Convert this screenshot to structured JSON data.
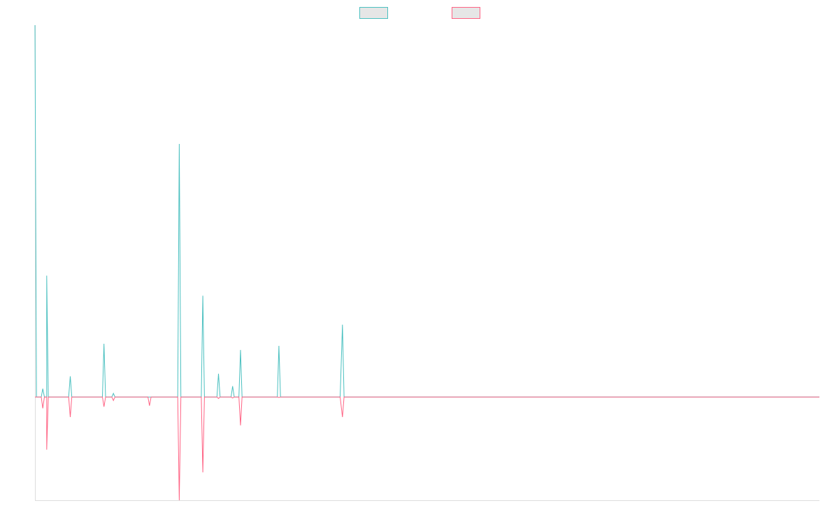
{
  "chart_data": {
    "type": "line",
    "title": "",
    "xlabel": "",
    "ylabel": "",
    "grid": false,
    "legend_position": "top-center",
    "x_range": [
      0,
      100
    ],
    "y_range": [
      -20,
      72
    ],
    "series": [
      {
        "color": "#4bc0c0",
        "fill": "#e6e6e6",
        "points": [
          [
            0.0,
            72
          ],
          [
            0.2,
            0
          ],
          [
            0.8,
            0
          ],
          [
            1.0,
            1.6
          ],
          [
            1.2,
            0
          ],
          [
            1.5,
            0
          ],
          [
            1.5,
            23.5
          ],
          [
            1.7,
            0
          ],
          [
            4.3,
            0
          ],
          [
            4.5,
            4.0
          ],
          [
            4.7,
            0
          ],
          [
            8.6,
            0
          ],
          [
            8.8,
            10.3
          ],
          [
            9.0,
            0
          ],
          [
            9.8,
            0
          ],
          [
            10.0,
            0.7
          ],
          [
            10.2,
            0
          ],
          [
            14.4,
            0
          ],
          [
            14.6,
            0
          ],
          [
            14.8,
            0
          ],
          [
            18.2,
            0
          ],
          [
            18.4,
            49.0
          ],
          [
            18.6,
            0
          ],
          [
            21.2,
            0
          ],
          [
            21.4,
            19.6
          ],
          [
            21.6,
            0
          ],
          [
            23.2,
            0
          ],
          [
            23.4,
            4.5
          ],
          [
            23.6,
            0
          ],
          [
            25.0,
            0
          ],
          [
            25.2,
            2.1
          ],
          [
            25.4,
            0
          ],
          [
            26.0,
            0
          ],
          [
            26.2,
            9.1
          ],
          [
            26.4,
            0
          ],
          [
            30.9,
            0
          ],
          [
            31.1,
            9.9
          ],
          [
            31.3,
            0
          ],
          [
            38.9,
            0
          ],
          [
            39.2,
            14.0
          ],
          [
            39.4,
            0
          ],
          [
            100,
            0
          ]
        ]
      },
      {
        "color": "#ff6384",
        "fill": "#e6e6e6",
        "points": [
          [
            0.0,
            0
          ],
          [
            0.8,
            0
          ],
          [
            1.0,
            -2.2
          ],
          [
            1.2,
            0
          ],
          [
            1.5,
            0
          ],
          [
            1.5,
            -10.2
          ],
          [
            1.7,
            0
          ],
          [
            4.3,
            0
          ],
          [
            4.5,
            -3.9
          ],
          [
            4.7,
            0
          ],
          [
            8.6,
            0
          ],
          [
            8.8,
            -1.9
          ],
          [
            9.0,
            0
          ],
          [
            9.8,
            0
          ],
          [
            10.0,
            -0.7
          ],
          [
            10.2,
            0
          ],
          [
            14.4,
            0
          ],
          [
            14.6,
            -1.7
          ],
          [
            14.8,
            0
          ],
          [
            18.2,
            0
          ],
          [
            18.4,
            -20.0
          ],
          [
            18.6,
            0
          ],
          [
            21.2,
            0
          ],
          [
            21.4,
            -14.6
          ],
          [
            21.6,
            0
          ],
          [
            23.2,
            0
          ],
          [
            23.4,
            -0.3
          ],
          [
            23.6,
            0
          ],
          [
            25.0,
            0
          ],
          [
            25.2,
            -0.2
          ],
          [
            25.4,
            0
          ],
          [
            26.0,
            0
          ],
          [
            26.2,
            -5.5
          ],
          [
            26.4,
            0
          ],
          [
            30.9,
            0
          ],
          [
            31.1,
            -0.1
          ],
          [
            31.3,
            0
          ],
          [
            38.9,
            0
          ],
          [
            39.2,
            -3.9
          ],
          [
            39.4,
            0
          ],
          [
            100,
            0
          ]
        ]
      }
    ]
  }
}
